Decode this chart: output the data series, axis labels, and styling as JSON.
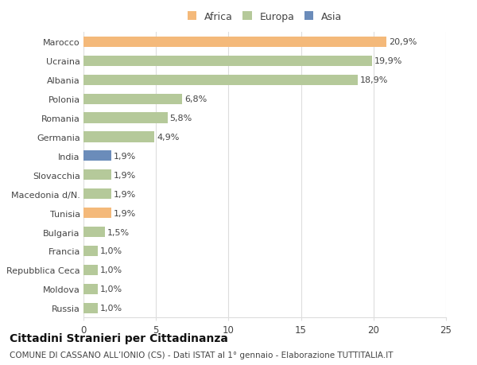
{
  "categories": [
    "Russia",
    "Moldova",
    "Repubblica Ceca",
    "Francia",
    "Bulgaria",
    "Tunisia",
    "Macedonia d/N.",
    "Slovacchia",
    "India",
    "Germania",
    "Romania",
    "Polonia",
    "Albania",
    "Ucraina",
    "Marocco"
  ],
  "values": [
    1.0,
    1.0,
    1.0,
    1.0,
    1.5,
    1.9,
    1.9,
    1.9,
    1.9,
    4.9,
    5.8,
    6.8,
    18.9,
    19.9,
    20.9
  ],
  "labels": [
    "1,0%",
    "1,0%",
    "1,0%",
    "1,0%",
    "1,5%",
    "1,9%",
    "1,9%",
    "1,9%",
    "1,9%",
    "4,9%",
    "5,8%",
    "6,8%",
    "18,9%",
    "19,9%",
    "20,9%"
  ],
  "africa_countries": [
    "Marocco",
    "Tunisia"
  ],
  "asia_countries": [
    "India"
  ],
  "xlim": [
    0,
    25
  ],
  "xticks": [
    0,
    5,
    10,
    15,
    20,
    25
  ],
  "title": "Cittadini Stranieri per Cittadinanza",
  "subtitle": "COMUNE DI CASSANO ALL’IONIO (CS) - Dati ISTAT al 1° gennaio - Elaborazione TUTTITALIA.IT",
  "bg_color": "#ffffff",
  "bar_height": 0.55,
  "grid_color": "#dddddd",
  "text_color": "#444444",
  "africa_color": "#f4b97a",
  "europa_color": "#b5c99a",
  "asia_color": "#6b8cba",
  "legend_labels": [
    "Africa",
    "Europa",
    "Asia"
  ],
  "title_fontsize": 10,
  "subtitle_fontsize": 7.5,
  "label_fontsize": 8,
  "ytick_fontsize": 8,
  "xtick_fontsize": 8.5
}
